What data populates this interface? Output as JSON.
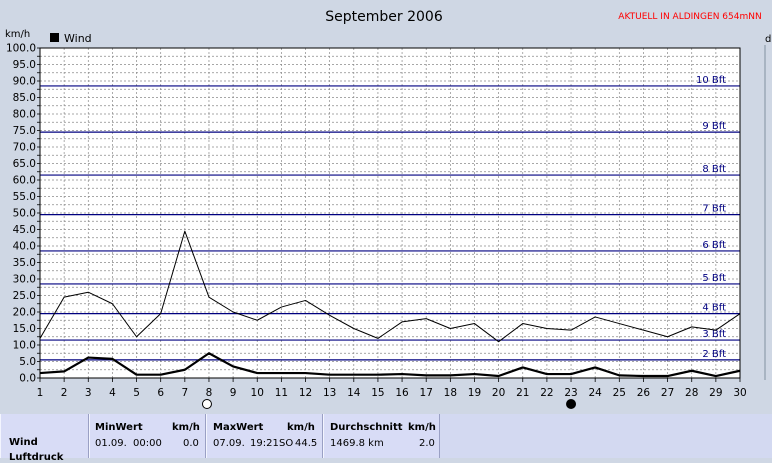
{
  "header": {
    "title": "September 2006",
    "station": "AKTUELL IN ALDINGEN 654mNN"
  },
  "chart_data": {
    "type": "line",
    "title": "September 2006",
    "ylabel": "km/h",
    "right_axis_label_fragment": "d",
    "ylim": [
      0,
      100
    ],
    "y_ticks": [
      "0.0",
      "2.5",
      "5.0",
      "7.5",
      "10.0",
      "12.5",
      "15.0",
      "17.5",
      "20.0",
      "22.5",
      "25.0",
      "27.5",
      "30.0",
      "32.5",
      "35.0",
      "37.5",
      "40.0",
      "42.5",
      "45.0",
      "47.5",
      "50.0",
      "52.5",
      "55.0",
      "57.5",
      "60.0",
      "62.5",
      "65.0",
      "67.5",
      "70.0",
      "72.5",
      "75.0",
      "77.5",
      "80.0",
      "82.5",
      "85.0",
      "87.5",
      "90.0",
      "92.5",
      "95.0",
      "97.5",
      "100.0"
    ],
    "x": [
      1,
      2,
      3,
      4,
      5,
      6,
      7,
      8,
      9,
      10,
      11,
      12,
      13,
      14,
      15,
      16,
      17,
      18,
      19,
      20,
      21,
      22,
      23,
      24,
      25,
      26,
      27,
      28,
      29,
      30
    ],
    "x_ticks": [
      "1",
      "2",
      "3",
      "4",
      "5",
      "6",
      "7",
      "8",
      "9",
      "10",
      "11",
      "12",
      "13",
      "14",
      "15",
      "16",
      "17",
      "18",
      "19",
      "20",
      "21",
      "22",
      "23",
      "24",
      "25",
      "26",
      "27",
      "28",
      "29",
      "30"
    ],
    "legend": [
      {
        "label": "Wind",
        "color": "#000000"
      }
    ],
    "series": [
      {
        "name": "Wind",
        "color": "#000000",
        "width": 2.2,
        "values": [
          1.5,
          2.0,
          6.2,
          5.8,
          1.0,
          1.0,
          2.5,
          7.5,
          3.5,
          1.5,
          1.5,
          1.5,
          1.0,
          1.0,
          1.0,
          1.2,
          0.8,
          0.8,
          1.2,
          0.6,
          3.2,
          1.2,
          1.2,
          3.2,
          0.8,
          0.6,
          0.6,
          2.2,
          0.6,
          2.2
        ]
      },
      {
        "color": "#000000",
        "width": 1,
        "values": [
          12.0,
          24.5,
          26.0,
          22.5,
          12.5,
          19.5,
          44.5,
          24.5,
          20.0,
          17.5,
          21.5,
          23.5,
          19.0,
          15.0,
          12.0,
          17.0,
          18.0,
          15.0,
          16.5,
          11.0,
          16.5,
          15.0,
          14.5,
          18.5,
          16.5,
          14.5,
          12.5,
          15.5,
          14.5,
          19.5
        ]
      }
    ],
    "beaufort": [
      {
        "label": "2 Bft",
        "value": 5.5
      },
      {
        "label": "3 Bft",
        "value": 11.5
      },
      {
        "label": "4 Bft",
        "value": 19.5
      },
      {
        "label": "5 Bft",
        "value": 28.5
      },
      {
        "label": "6 Bft",
        "value": 38.5
      },
      {
        "label": "7 Bft",
        "value": 49.5
      },
      {
        "label": "8 Bft",
        "value": 61.5
      },
      {
        "label": "9 Bft",
        "value": 74.5
      },
      {
        "label": "10 Bft",
        "value": 88.5
      }
    ],
    "beaufort_color": "#000080",
    "grid": true,
    "moon_markers": [
      {
        "day": 8,
        "phase": "full"
      },
      {
        "day": 23,
        "phase": "new"
      }
    ]
  },
  "stats": {
    "row_label": "Wind",
    "row_label_2": "Luftdruck",
    "min_header": "MinWert",
    "min_unit": "km/h",
    "min_date": "01.09.",
    "min_time": "00:00",
    "min_value": "0.0",
    "max_header": "MaxWert",
    "max_unit": "km/h",
    "max_date": "07.09.",
    "max_time": "19:21",
    "max_dir": "SO",
    "max_value": "44.5",
    "avg_header": "Durchschnitt",
    "avg_unit": "km/h",
    "avg_total": "1469.8 km",
    "avg_value": "2.0"
  }
}
